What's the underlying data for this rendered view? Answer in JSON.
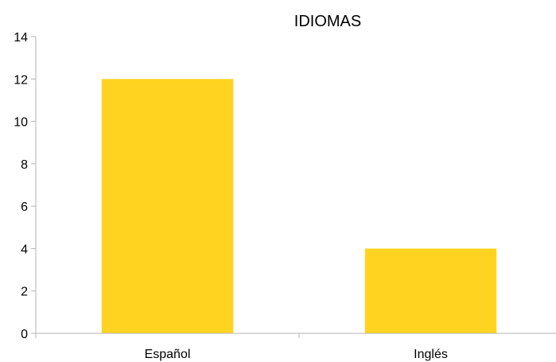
{
  "chart_data": {
    "type": "bar",
    "title": "IDIOMAS",
    "categories": [
      "Español",
      "Inglés"
    ],
    "values": [
      12,
      4
    ],
    "xlabel": "",
    "ylabel": "",
    "ylim": [
      0,
      14
    ],
    "yticks": [
      0,
      2,
      4,
      6,
      8,
      10,
      12,
      14
    ],
    "grid": false,
    "legend": "none",
    "bar_color": "#ffd320"
  }
}
